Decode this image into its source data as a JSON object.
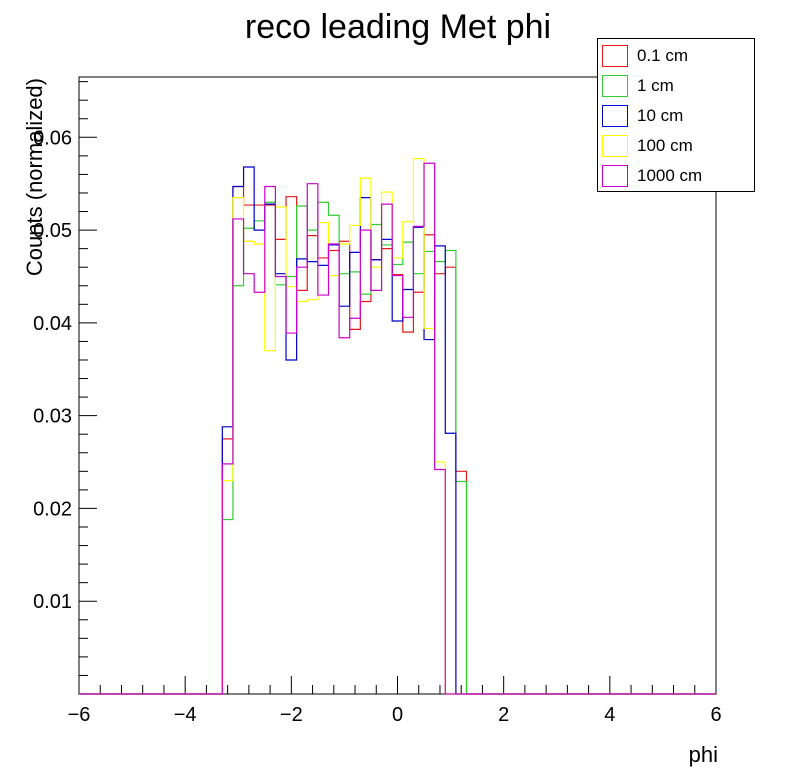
{
  "chart_data": {
    "type": "histogram",
    "title": "reco leading Met phi",
    "xlabel": "phi",
    "ylabel": "Counts (normalized)",
    "xlim": [
      -6,
      6
    ],
    "ylim": [
      0,
      0.0665
    ],
    "xticks": [
      "−6",
      "−4",
      "−2",
      "0",
      "2",
      "4",
      "6"
    ],
    "yticks": [
      "0.01",
      "0.02",
      "0.03",
      "0.04",
      "0.05",
      "0.06"
    ],
    "bin_low": -3.3,
    "bin_width": 0.2,
    "grid": false,
    "legend_position": "top-right",
    "series": [
      {
        "name": "0.1 cm",
        "color": "#e41a1c",
        "values": [
          0.0275,
          0.0547,
          0.0527,
          0.0527,
          0.0527,
          0.049,
          0.0536,
          0.0435,
          0.0494,
          0.047,
          0.0478,
          0.0488,
          0.0393,
          0.0423,
          0.0468,
          0.048,
          0.0452,
          0.039,
          0.0433,
          0.0495,
          0.0453,
          0.046,
          0.024
        ]
      },
      {
        "name": "1 cm",
        "color": "#33cc33",
        "values": [
          0.0188,
          0.044,
          0.0502,
          0.051,
          0.053,
          0.0441,
          0.045,
          0.0526,
          0.05,
          0.053,
          0.0516,
          0.0453,
          0.0455,
          0.0431,
          0.0506,
          0.0484,
          0.0463,
          0.0487,
          0.0453,
          0.0477,
          0.0466,
          0.0478,
          0.0229
        ]
      },
      {
        "name": "10 cm",
        "color": "#0000cc",
        "values": [
          0.0288,
          0.0547,
          0.0568,
          0.05,
          0.0528,
          0.0453,
          0.036,
          0.0469,
          0.0466,
          0.0462,
          0.0484,
          0.0418,
          0.0476,
          0.0535,
          0.0468,
          0.049,
          0.0402,
          0.0436,
          0.0503,
          0.0382,
          0.0483,
          0.0281,
          0.0
        ]
      },
      {
        "name": "100 cm",
        "color": "#ffff00",
        "values": [
          0.023,
          0.0535,
          0.0488,
          0.0485,
          0.037,
          0.0525,
          0.0439,
          0.0423,
          0.0425,
          0.0508,
          0.0451,
          0.0485,
          0.0505,
          0.0556,
          0.046,
          0.0541,
          0.047,
          0.0509,
          0.0577,
          0.0394,
          0.025,
          0.0,
          0.0
        ]
      },
      {
        "name": "1000 cm",
        "color": "#cc00cc",
        "values": [
          0.0248,
          0.0512,
          0.0453,
          0.0433,
          0.0547,
          0.045,
          0.0389,
          0.046,
          0.055,
          0.043,
          0.0485,
          0.0384,
          0.0405,
          0.05,
          0.0435,
          0.0528,
          0.0451,
          0.0406,
          0.0504,
          0.0572,
          0.0242,
          0.0,
          0.0
        ]
      }
    ]
  },
  "legend": [
    {
      "label": "0.1 cm",
      "color": "#e41a1c"
    },
    {
      "label": "1 cm",
      "color": "#33cc33"
    },
    {
      "label": "10 cm",
      "color": "#0000cc"
    },
    {
      "label": "100 cm",
      "color": "#ffff00"
    },
    {
      "label": "1000 cm",
      "color": "#cc00cc"
    }
  ]
}
